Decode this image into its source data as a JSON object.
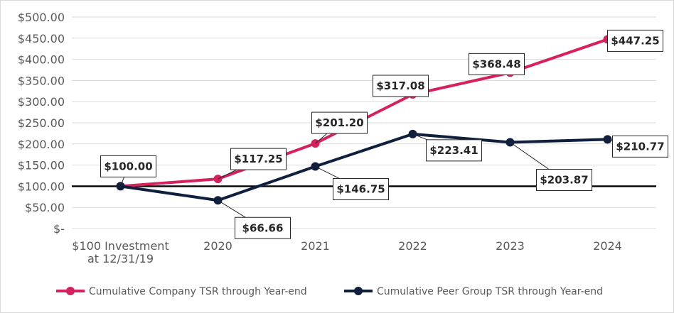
{
  "chart_data": {
    "type": "line",
    "title": "",
    "xlabel": "",
    "ylabel": "",
    "categories": [
      [
        "$100 Investment",
        "at 12/31/19"
      ],
      [
        "2020"
      ],
      [
        "2021"
      ],
      [
        "2022"
      ],
      [
        "2023"
      ],
      [
        "2024"
      ]
    ],
    "ylim": [
      0,
      500
    ],
    "ytick_values": [
      0,
      50,
      100,
      150,
      200,
      250,
      300,
      350,
      400,
      450,
      500
    ],
    "ytick_labels": [
      "$-",
      "$50.00",
      "$100.00",
      "$150.00",
      "$200.00",
      "$250.00",
      "$300.00",
      "$350.00",
      "$400.00",
      "$450.00",
      "$500.00"
    ],
    "grid": true,
    "baseline": 100,
    "legend_position": "bottom",
    "series": [
      {
        "name": "Cumulative Company TSR through Year-end",
        "color": "#d6215f",
        "values": [
          100.0,
          117.25,
          201.2,
          317.08,
          368.48,
          447.25
        ],
        "labels": [
          "$100.00",
          "$117.25",
          "$201.20",
          "$317.08",
          "$368.48",
          "$447.25"
        ]
      },
      {
        "name": "Cumulative Peer Group TSR through Year-end",
        "color": "#0f1f3d",
        "values": [
          100.0,
          66.66,
          146.75,
          223.41,
          203.87,
          210.77
        ],
        "labels": [
          "$100.00",
          "$66.66",
          "$146.75",
          "$223.41",
          "$203.87",
          "$210.77"
        ]
      }
    ]
  }
}
